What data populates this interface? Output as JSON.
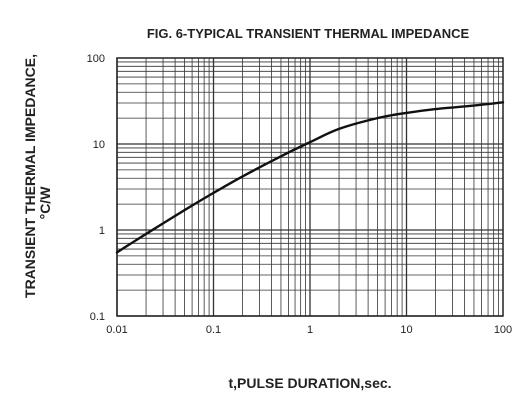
{
  "chart_data": {
    "type": "line",
    "title": "FIG. 6-TYPICAL TRANSIENT THERMAL IMPEDANCE",
    "xlabel": "t,PULSE DURATION,sec.",
    "ylabel_line1": "TRANSIENT THERMAL IMPEDANCE,",
    "ylabel_line2": "°C/W",
    "x_scale": "log",
    "y_scale": "log",
    "xlim": [
      0.01,
      100
    ],
    "ylim": [
      0.1,
      100
    ],
    "grid": true,
    "x_ticks": [
      {
        "value": 0.01,
        "label": "0.01"
      },
      {
        "value": 0.1,
        "label": "0.1"
      },
      {
        "value": 1,
        "label": "1"
      },
      {
        "value": 10,
        "label": "10"
      },
      {
        "value": 100,
        "label": "100"
      }
    ],
    "y_ticks": [
      {
        "value": 0.1,
        "label": "0.1"
      },
      {
        "value": 1,
        "label": "1"
      },
      {
        "value": 10,
        "label": "10"
      },
      {
        "value": 100,
        "label": "100"
      }
    ],
    "series": [
      {
        "color": "#111111",
        "x": [
          0.01,
          0.02,
          0.05,
          0.1,
          0.2,
          0.5,
          1,
          2,
          5,
          10,
          20,
          50,
          100
        ],
        "y": [
          0.55,
          0.9,
          1.7,
          2.7,
          4.2,
          7.2,
          10.5,
          15,
          20,
          23,
          25.5,
          28,
          30.5
        ]
      }
    ]
  }
}
